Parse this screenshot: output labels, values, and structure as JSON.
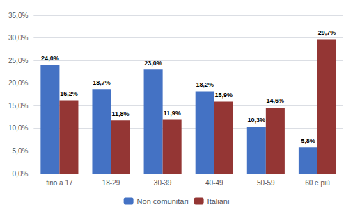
{
  "chart_data": {
    "type": "bar",
    "categories": [
      "fino a 17",
      "18-29",
      "30-39",
      "40-49",
      "50-59",
      "60 e più"
    ],
    "series": [
      {
        "name": "Non comunitari",
        "color": "#4472C4",
        "values": [
          24.0,
          18.7,
          23.0,
          18.2,
          10.3,
          5.8
        ],
        "value_labels": [
          "24,0%",
          "18,7%",
          "23,0%",
          "18,2%",
          "10,3%",
          "5,8%"
        ]
      },
      {
        "name": "Italiani",
        "color": "#943634",
        "values": [
          16.2,
          11.8,
          11.9,
          15.9,
          14.6,
          29.7
        ],
        "value_labels": [
          "16,2%",
          "11,8%",
          "11,9%",
          "15,9%",
          "14,6%",
          "29,7%"
        ]
      }
    ],
    "ylim": [
      0,
      35
    ],
    "yticks": [
      {
        "value": 0,
        "label": "0,0%"
      },
      {
        "value": 5,
        "label": "5,0%"
      },
      {
        "value": 10,
        "label": "10,0%"
      },
      {
        "value": 15,
        "label": "15,0%"
      },
      {
        "value": 20,
        "label": "20,0%"
      },
      {
        "value": 25,
        "label": "25,0%"
      },
      {
        "value": 30,
        "label": "30,0%"
      },
      {
        "value": 35,
        "label": "35,0%"
      }
    ],
    "grid": true,
    "legend": "bottom",
    "data_labels": true
  }
}
